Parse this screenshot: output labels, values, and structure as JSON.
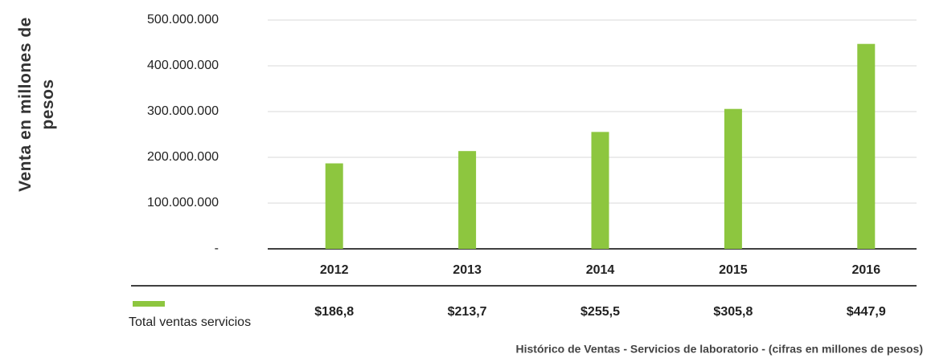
{
  "chart_data": {
    "type": "bar",
    "ylabel": "Venta en millones de pesos",
    "caption": "Histórico de Ventas - Servicios de laboratorio - (cifras en millones de pesos)",
    "categories": [
      "2012",
      "2013",
      "2014",
      "2015",
      "2016"
    ],
    "series": [
      {
        "name": "Total ventas servicios",
        "color": "#8dc63f",
        "values": [
          186800000,
          213700000,
          255500000,
          305800000,
          447900000
        ],
        "value_labels": [
          "$186,8",
          "$213,7",
          "$255,5",
          "$305,8",
          "$447,9"
        ]
      }
    ],
    "ylim": [
      0,
      500000000
    ],
    "yticks": [
      {
        "value": 0,
        "label": "-"
      },
      {
        "value": 100000000,
        "label": "100.000.000"
      },
      {
        "value": 200000000,
        "label": "200.000.000"
      },
      {
        "value": 300000000,
        "label": "300.000.000"
      },
      {
        "value": 400000000,
        "label": "400.000.000"
      },
      {
        "value": 500000000,
        "label": "500.000.000"
      }
    ],
    "grid": true
  }
}
